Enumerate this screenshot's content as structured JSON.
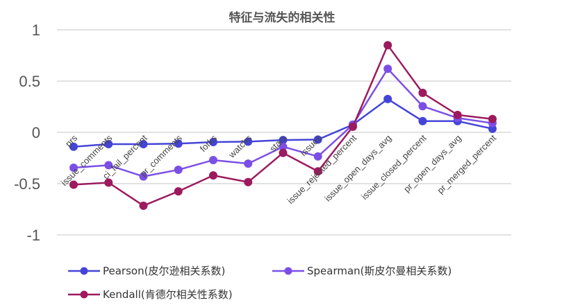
{
  "chart_data": {
    "type": "line",
    "title": "特征与流失的相关性",
    "categories": [
      "prs",
      "issue_comments",
      "ci_fail_percent",
      "pr_comments",
      "forks",
      "watchs",
      "stars",
      "issues",
      "issue_rejected_percent",
      "issue_open_days_avg",
      "issue_closed_percent",
      "pr_open_days_avg",
      "pr_merged_percent"
    ],
    "ylim": [
      -1,
      1
    ],
    "yticks": [
      "1",
      "0.5",
      "0",
      "-0.5",
      "-1"
    ],
    "ytick_values": [
      1,
      0.5,
      0,
      -0.5,
      -1
    ],
    "grid": true,
    "legend_position": "bottom",
    "series": [
      {
        "name": "Pearson(皮尔逊相关系数)",
        "color": "#4444d8",
        "values": [
          -0.14,
          -0.115,
          -0.115,
          -0.11,
          -0.095,
          -0.09,
          -0.075,
          -0.07,
          0.075,
          0.325,
          0.11,
          0.11,
          0.035
        ]
      },
      {
        "name": "Spearman(斯皮尔曼相关系数)",
        "color": "#7b4fe6",
        "values": [
          -0.345,
          -0.32,
          -0.43,
          -0.365,
          -0.27,
          -0.305,
          -0.14,
          -0.235,
          0.075,
          0.62,
          0.255,
          0.14,
          0.09
        ]
      },
      {
        "name": "Kendall(肯德尔相关性系数)",
        "color": "#9c1a5e",
        "values": [
          -0.51,
          -0.49,
          -0.715,
          -0.575,
          -0.42,
          -0.485,
          -0.2,
          -0.38,
          0.055,
          0.85,
          0.385,
          0.17,
          0.13
        ]
      }
    ]
  }
}
